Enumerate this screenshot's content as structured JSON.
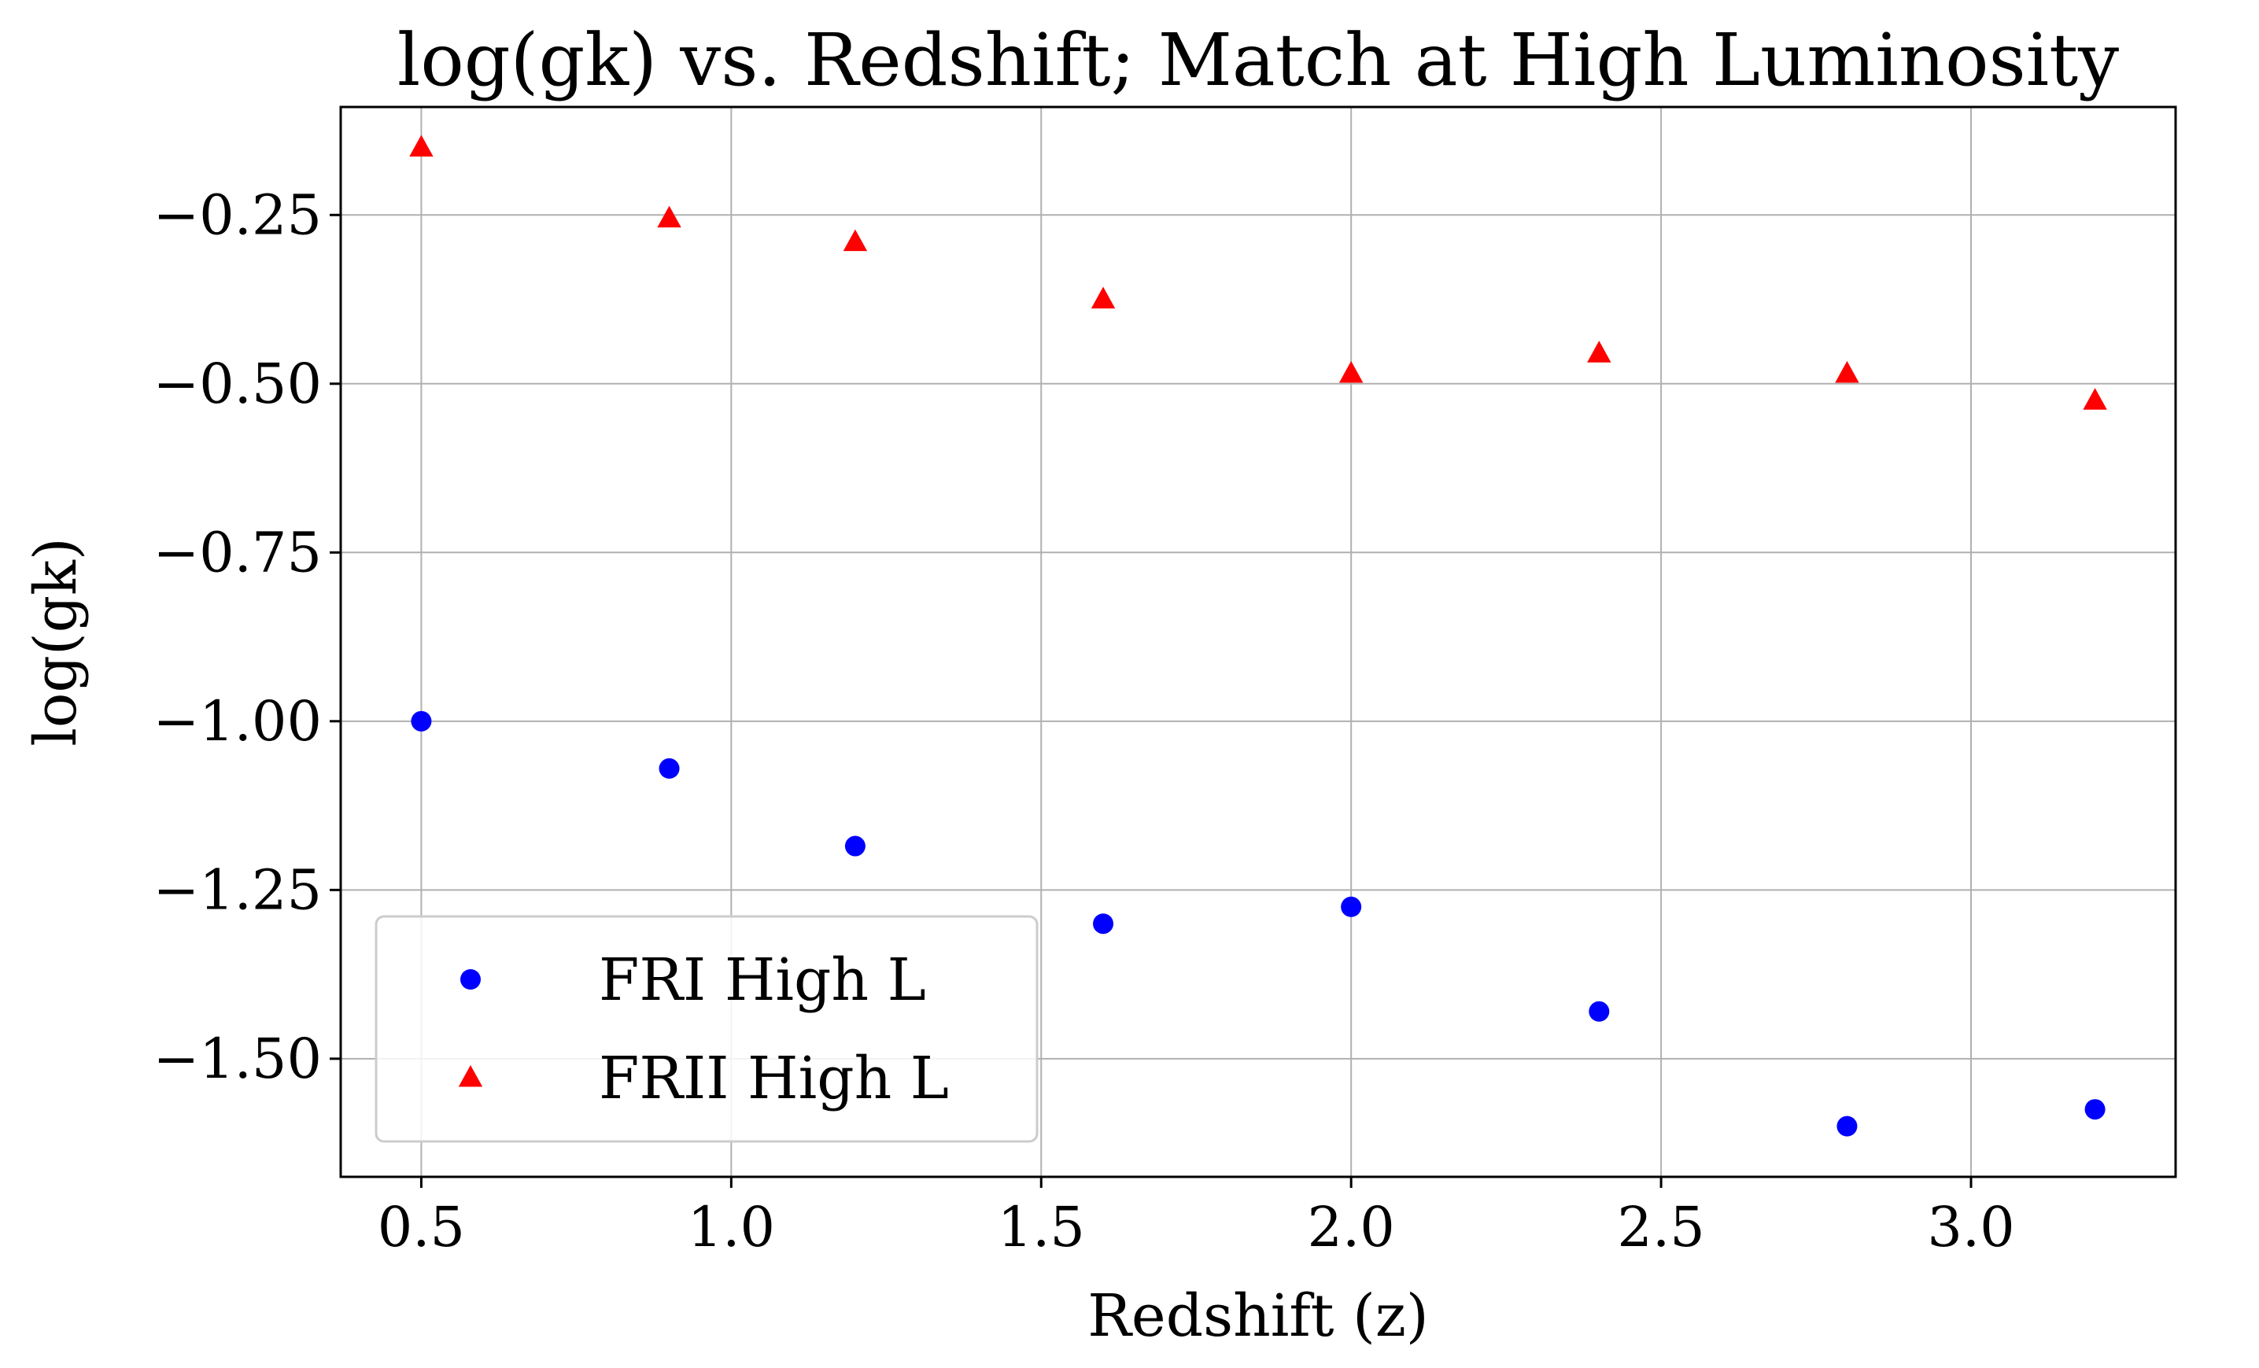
{
  "chart_data": {
    "type": "scatter",
    "title": "log(gk) vs. Redshift; Match at High Luminosity",
    "xlabel": "Redshift (z)",
    "ylabel": "log(gk)",
    "xlim": [
      0.37,
      3.33
    ],
    "ylim": [
      -1.675,
      -0.09
    ],
    "xticks": [
      0.5,
      1.0,
      1.5,
      2.0,
      2.5,
      3.0
    ],
    "xtick_labels": [
      "0.5",
      "1.0",
      "1.5",
      "2.0",
      "2.5",
      "3.0"
    ],
    "yticks": [
      -0.25,
      -0.5,
      -0.75,
      -1.0,
      -1.25,
      -1.5
    ],
    "ytick_labels": [
      "−0.25",
      "−0.50",
      "−0.75",
      "−1.00",
      "−1.25",
      "−1.50"
    ],
    "grid": true,
    "legend_position": "lower-left",
    "series": [
      {
        "name": "FRI High L",
        "marker": "circle",
        "color": "#0000ff",
        "x": [
          0.5,
          0.9,
          1.2,
          1.6,
          2.0,
          2.4,
          2.8,
          3.2
        ],
        "y": [
          -1.0,
          -1.07,
          -1.185,
          -1.3,
          -1.275,
          -1.43,
          -1.6,
          -1.575
        ]
      },
      {
        "name": "FRII High L",
        "marker": "triangle",
        "color": "#ff0000",
        "x": [
          0.5,
          0.9,
          1.2,
          1.6,
          2.0,
          2.4,
          2.8,
          3.2
        ],
        "y": [
          -0.15,
          -0.255,
          -0.29,
          -0.375,
          -0.485,
          -0.455,
          -0.485,
          -0.525
        ]
      }
    ]
  }
}
